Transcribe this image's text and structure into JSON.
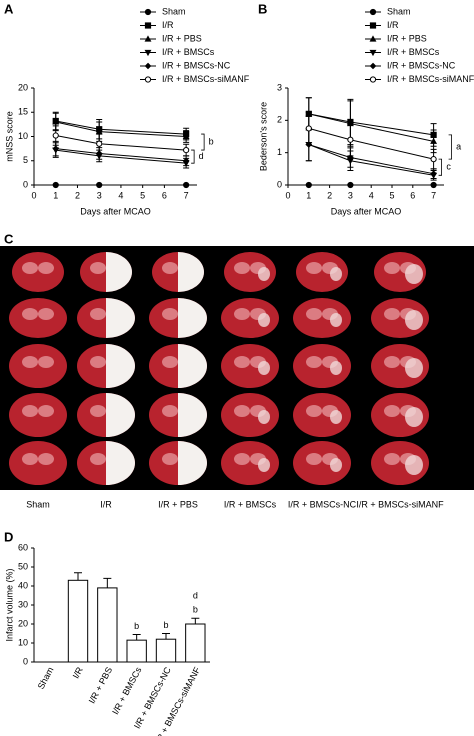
{
  "chart_data": [
    {
      "type": "line",
      "panel_label": "A",
      "x_label": "Days after MCAO",
      "y_label": "mNSS score",
      "x": [
        1,
        3,
        7
      ],
      "xlim": [
        0,
        7.5
      ],
      "xticks": [
        0,
        1,
        2,
        3,
        4,
        5,
        6,
        7
      ],
      "ylim": [
        0,
        20
      ],
      "yticks": [
        0,
        5,
        10,
        15,
        20
      ],
      "series": [
        {
          "name": "Sham",
          "color": "#000000",
          "marker": "circle",
          "values": [
            0,
            0,
            0
          ],
          "errors": [
            0,
            0,
            0
          ]
        },
        {
          "name": "I/R",
          "color": "#000000",
          "marker": "square",
          "values": [
            13.2,
            11.5,
            10.5
          ],
          "errors": [
            1.8,
            2,
            1.2
          ]
        },
        {
          "name": "I/R + PBS",
          "color": "#000000",
          "marker": "triangle-up",
          "values": [
            13,
            11,
            10
          ],
          "errors": [
            1.8,
            2,
            1.2
          ]
        },
        {
          "name": "I/R + BMSCs",
          "color": "#000000",
          "marker": "triangle-down",
          "values": [
            7.2,
            6,
            4.5
          ],
          "errors": [
            1.5,
            1.2,
            1
          ]
        },
        {
          "name": "I/R + BMSCs-NC",
          "color": "#000000",
          "marker": "diamond",
          "values": [
            7.5,
            6.5,
            5
          ],
          "errors": [
            1.5,
            1.2,
            1
          ]
        },
        {
          "name": "I/R + BMSCs-siMANF",
          "color": "#000000",
          "marker": "open-circle",
          "values": [
            10.2,
            8.5,
            7.2
          ],
          "errors": [
            2,
            2,
            1.2
          ]
        }
      ],
      "annotations": [
        "b",
        "d"
      ]
    },
    {
      "type": "line",
      "panel_label": "B",
      "x_label": "Days after MCAO",
      "y_label": "Bederson's score",
      "x": [
        1,
        3,
        7
      ],
      "xlim": [
        0,
        7.5
      ],
      "xticks": [
        0,
        1,
        2,
        3,
        4,
        5,
        6,
        7
      ],
      "ylim": [
        0,
        3
      ],
      "yticks": [
        0,
        1,
        2,
        3
      ],
      "series": [
        {
          "name": "Sham",
          "color": "#000000",
          "marker": "circle",
          "values": [
            0,
            0,
            0
          ],
          "errors": [
            0,
            0,
            0
          ]
        },
        {
          "name": "I/R",
          "color": "#000000",
          "marker": "square",
          "values": [
            2.2,
            1.95,
            1.55
          ],
          "errors": [
            0.5,
            0.7,
            0.35
          ]
        },
        {
          "name": "I/R + PBS",
          "color": "#000000",
          "marker": "triangle-up",
          "values": [
            2.2,
            1.9,
            1.35
          ],
          "errors": [
            0.5,
            0.7,
            0.35
          ]
        },
        {
          "name": "I/R + BMSCs",
          "color": "#000000",
          "marker": "triangle-down",
          "values": [
            1.25,
            0.75,
            0.3
          ],
          "errors": [
            0.5,
            0.3,
            0.15
          ]
        },
        {
          "name": "I/R + BMSCs-NC",
          "color": "#000000",
          "marker": "diamond",
          "values": [
            1.25,
            0.85,
            0.35
          ],
          "errors": [
            0.5,
            0.3,
            0.15
          ]
        },
        {
          "name": "I/R + BMSCs-siMANF",
          "color": "#000000",
          "marker": "open-circle",
          "values": [
            1.75,
            1.4,
            0.8
          ],
          "errors": [
            0.5,
            0.5,
            0.3
          ]
        }
      ],
      "annotations": [
        "a",
        "c"
      ]
    },
    {
      "type": "bar",
      "panel_label": "D",
      "y_label": "Infarct volume (%)",
      "categories": [
        "Sham",
        "I/R",
        "I/R + PBS",
        "I/R + BMSCs",
        "I/R + BMSCs-NC",
        "I/R + BMSCs-siMANF"
      ],
      "values": [
        0,
        43,
        39,
        11.5,
        12,
        20
      ],
      "errors": [
        0,
        4,
        5,
        3,
        3,
        3
      ],
      "color": "#ffffff",
      "edge_color": "#000000",
      "ylim": [
        0,
        60
      ],
      "yticks": [
        0,
        10,
        20,
        30,
        40,
        50,
        60
      ],
      "bar_letters": [
        null,
        null,
        null,
        [
          "b"
        ],
        [
          "b"
        ],
        [
          "b",
          "d"
        ]
      ]
    }
  ],
  "image_panel": {
    "panel_label": "C",
    "columns": [
      "Sham",
      "I/R",
      "I/R + PBS",
      "I/R + BMSCs",
      "I/R + BMSCs-NC",
      "I/R + BMSCs-siMANF"
    ]
  }
}
